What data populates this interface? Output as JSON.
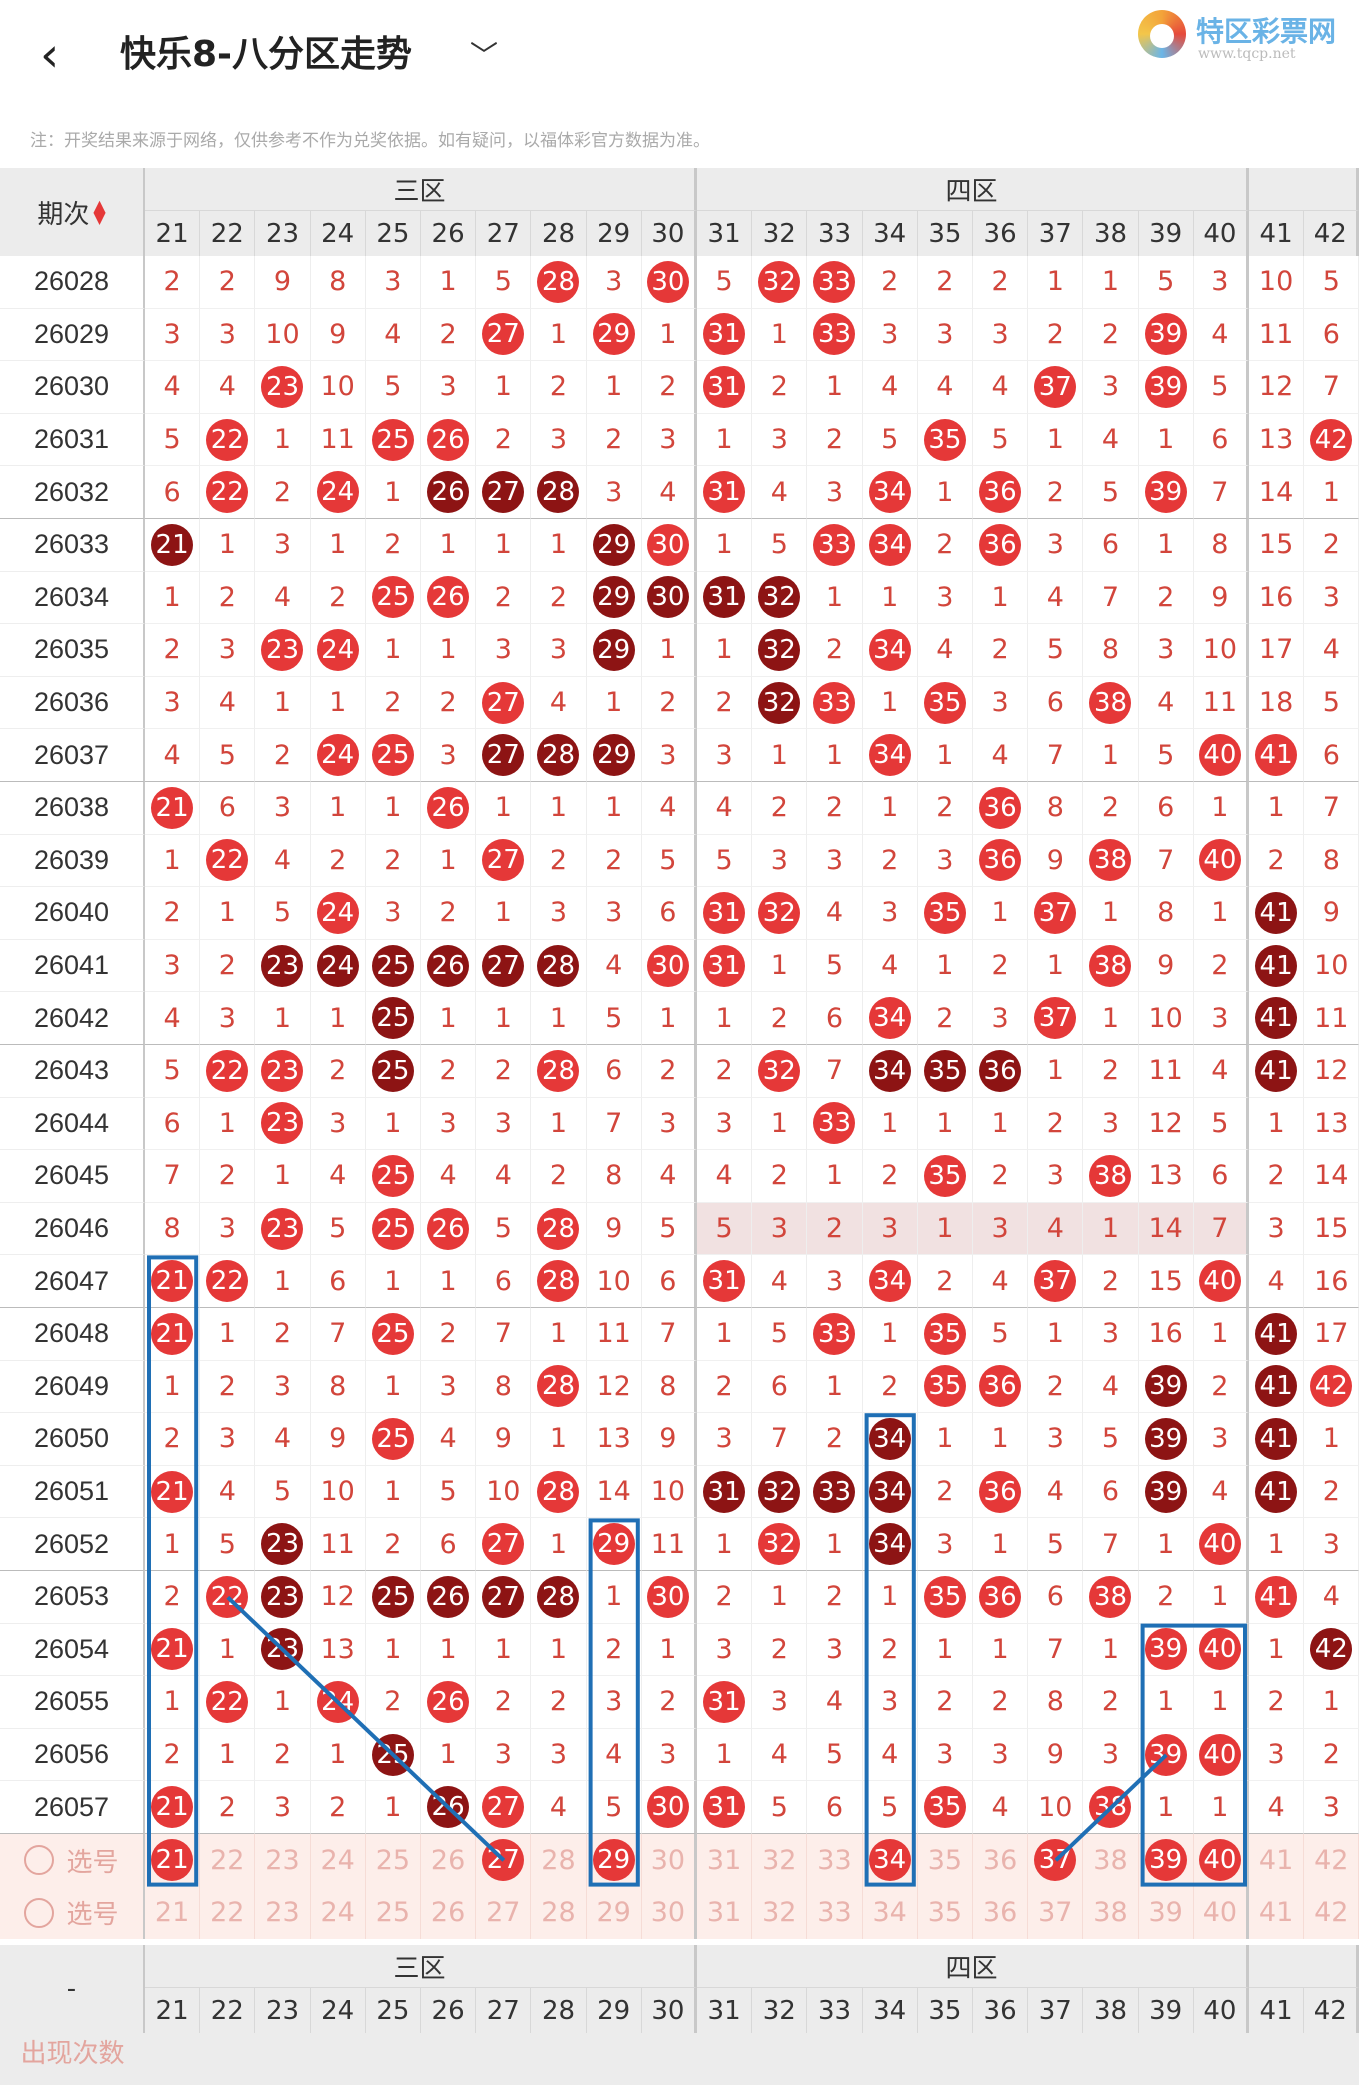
{
  "header": {
    "back_icon": "chevron-left-icon",
    "title": "快乐8-八分区走势",
    "dropdown_icon": "chevron-down-icon",
    "logo_text": "特区彩票网",
    "logo_url": "www.tqcp.net"
  },
  "note": "注：开奖结果来源于网络，仅供参考不作为兑奖依据。如有疑问，以福体彩官方数据为准。",
  "table": {
    "period_header": "期次",
    "sort_icon": "sort-arrows-icon",
    "zones": [
      {
        "name": "三区",
        "numbers": [
          "21",
          "22",
          "23",
          "24",
          "25",
          "26",
          "27",
          "28",
          "29",
          "30"
        ]
      },
      {
        "name": "四区",
        "numbers": [
          "31",
          "32",
          "33",
          "34",
          "35",
          "36",
          "37",
          "38",
          "39",
          "40"
        ]
      },
      {
        "name": "",
        "numbers": [
          "41",
          "42"
        ]
      }
    ],
    "rows": [
      {
        "p": "26028",
        "c": [
          "2",
          "2",
          "9",
          "8",
          "3",
          "1",
          "5",
          "@28",
          "3",
          "@30",
          "5",
          "@32",
          "@33",
          "2",
          "2",
          "2",
          "1",
          "1",
          "5",
          "3",
          "10",
          "5"
        ]
      },
      {
        "p": "26029",
        "c": [
          "3",
          "3",
          "10",
          "9",
          "4",
          "2",
          "@27",
          "1",
          "@29",
          "1",
          "@31",
          "1",
          "@33",
          "3",
          "3",
          "3",
          "2",
          "2",
          "@39",
          "4",
          "11",
          "6"
        ]
      },
      {
        "p": "26030",
        "c": [
          "4",
          "4",
          "@23",
          "10",
          "5",
          "3",
          "1",
          "2",
          "1",
          "2",
          "@31",
          "2",
          "1",
          "4",
          "4",
          "4",
          "@37",
          "3",
          "@39",
          "5",
          "12",
          "7"
        ]
      },
      {
        "p": "26031",
        "c": [
          "5",
          "@22",
          "1",
          "11",
          "@25",
          "@26",
          "2",
          "3",
          "2",
          "3",
          "1",
          "3",
          "2",
          "5",
          "@35",
          "5",
          "1",
          "4",
          "1",
          "6",
          "13",
          "@42"
        ]
      },
      {
        "p": "26032",
        "c": [
          "6",
          "@22",
          "2",
          "@24",
          "1",
          "#26",
          "#27",
          "#28",
          "3",
          "4",
          "@31",
          "4",
          "3",
          "@34",
          "1",
          "@36",
          "2",
          "5",
          "@39",
          "7",
          "14",
          "1"
        ]
      },
      {
        "p": "26033",
        "c": [
          "#21",
          "1",
          "3",
          "1",
          "2",
          "1",
          "1",
          "1",
          "#29",
          "@30",
          "1",
          "5",
          "@33",
          "@34",
          "2",
          "@36",
          "3",
          "6",
          "1",
          "8",
          "15",
          "2"
        ]
      },
      {
        "p": "26034",
        "c": [
          "1",
          "2",
          "4",
          "2",
          "@25",
          "@26",
          "2",
          "2",
          "#29",
          "#30",
          "#31",
          "#32",
          "1",
          "1",
          "3",
          "1",
          "4",
          "7",
          "2",
          "9",
          "16",
          "3"
        ]
      },
      {
        "p": "26035",
        "c": [
          "2",
          "3",
          "@23",
          "@24",
          "1",
          "1",
          "3",
          "3",
          "#29",
          "1",
          "1",
          "#32",
          "2",
          "@34",
          "4",
          "2",
          "5",
          "8",
          "3",
          "10",
          "17",
          "4"
        ]
      },
      {
        "p": "26036",
        "c": [
          "3",
          "4",
          "1",
          "1",
          "2",
          "2",
          "@27",
          "4",
          "1",
          "2",
          "2",
          "#32",
          "@33",
          "1",
          "@35",
          "3",
          "6",
          "@38",
          "4",
          "11",
          "18",
          "5"
        ]
      },
      {
        "p": "26037",
        "c": [
          "4",
          "5",
          "2",
          "@24",
          "@25",
          "3",
          "#27",
          "#28",
          "#29",
          "3",
          "3",
          "1",
          "1",
          "@34",
          "1",
          "4",
          "7",
          "1",
          "5",
          "@40",
          "@41",
          "6"
        ]
      },
      {
        "p": "26038",
        "c": [
          "@21",
          "6",
          "3",
          "1",
          "1",
          "@26",
          "1",
          "1",
          "1",
          "4",
          "4",
          "2",
          "2",
          "1",
          "2",
          "@36",
          "8",
          "2",
          "6",
          "1",
          "1",
          "7"
        ]
      },
      {
        "p": "26039",
        "c": [
          "1",
          "@22",
          "4",
          "2",
          "2",
          "1",
          "@27",
          "2",
          "2",
          "5",
          "5",
          "3",
          "3",
          "2",
          "3",
          "@36",
          "9",
          "@38",
          "7",
          "@40",
          "2",
          "8"
        ]
      },
      {
        "p": "26040",
        "c": [
          "2",
          "1",
          "5",
          "@24",
          "3",
          "2",
          "1",
          "3",
          "3",
          "6",
          "@31",
          "@32",
          "4",
          "3",
          "@35",
          "1",
          "@37",
          "1",
          "8",
          "1",
          "#41",
          "9"
        ]
      },
      {
        "p": "26041",
        "c": [
          "3",
          "2",
          "#23",
          "#24",
          "#25",
          "#26",
          "#27",
          "#28",
          "4",
          "@30",
          "@31",
          "1",
          "5",
          "4",
          "1",
          "2",
          "1",
          "@38",
          "9",
          "2",
          "#41",
          "10"
        ]
      },
      {
        "p": "26042",
        "c": [
          "4",
          "3",
          "1",
          "1",
          "#25",
          "1",
          "1",
          "1",
          "5",
          "1",
          "1",
          "2",
          "6",
          "@34",
          "2",
          "3",
          "@37",
          "1",
          "10",
          "3",
          "#41",
          "11"
        ]
      },
      {
        "p": "26043",
        "c": [
          "5",
          "@22",
          "@23",
          "2",
          "#25",
          "2",
          "2",
          "@28",
          "6",
          "2",
          "2",
          "@32",
          "7",
          "#34",
          "#35",
          "#36",
          "1",
          "2",
          "11",
          "4",
          "#41",
          "12"
        ]
      },
      {
        "p": "26044",
        "c": [
          "6",
          "1",
          "@23",
          "3",
          "1",
          "3",
          "3",
          "1",
          "7",
          "3",
          "3",
          "1",
          "@33",
          "1",
          "1",
          "1",
          "2",
          "3",
          "12",
          "5",
          "1",
          "13"
        ]
      },
      {
        "p": "26045",
        "c": [
          "7",
          "2",
          "1",
          "4",
          "@25",
          "4",
          "4",
          "2",
          "8",
          "4",
          "4",
          "2",
          "1",
          "2",
          "@35",
          "2",
          "3",
          "@38",
          "13",
          "6",
          "2",
          "14"
        ]
      },
      {
        "p": "26046",
        "c": [
          "8",
          "3",
          "@23",
          "5",
          "@25",
          "@26",
          "5",
          "@28",
          "9",
          "5",
          "5",
          "3",
          "2",
          "3",
          "1",
          "3",
          "4",
          "1",
          "14",
          "7",
          "3",
          "15"
        ]
      },
      {
        "p": "26047",
        "c": [
          "@21",
          "@22",
          "1",
          "6",
          "1",
          "1",
          "6",
          "@28",
          "10",
          "6",
          "@31",
          "4",
          "3",
          "@34",
          "2",
          "4",
          "@37",
          "2",
          "15",
          "@40",
          "4",
          "16"
        ]
      },
      {
        "p": "26048",
        "c": [
          "@21",
          "1",
          "2",
          "7",
          "@25",
          "2",
          "7",
          "1",
          "11",
          "7",
          "1",
          "5",
          "@33",
          "1",
          "@35",
          "5",
          "1",
          "3",
          "16",
          "1",
          "#41",
          "17"
        ]
      },
      {
        "p": "26049",
        "c": [
          "1",
          "2",
          "3",
          "8",
          "1",
          "3",
          "8",
          "@28",
          "12",
          "8",
          "2",
          "6",
          "1",
          "2",
          "@35",
          "@36",
          "2",
          "4",
          "#39",
          "2",
          "#41",
          "@42"
        ]
      },
      {
        "p": "26050",
        "c": [
          "2",
          "3",
          "4",
          "9",
          "@25",
          "4",
          "9",
          "1",
          "13",
          "9",
          "3",
          "7",
          "2",
          "#34",
          "1",
          "1",
          "3",
          "5",
          "#39",
          "3",
          "#41",
          "1"
        ]
      },
      {
        "p": "26051",
        "c": [
          "@21",
          "4",
          "5",
          "10",
          "1",
          "5",
          "10",
          "@28",
          "14",
          "10",
          "#31",
          "#32",
          "#33",
          "#34",
          "2",
          "@36",
          "4",
          "6",
          "#39",
          "4",
          "#41",
          "2"
        ]
      },
      {
        "p": "26052",
        "c": [
          "1",
          "5",
          "#23",
          "11",
          "2",
          "6",
          "@27",
          "1",
          "@29",
          "11",
          "1",
          "@32",
          "1",
          "#34",
          "3",
          "1",
          "5",
          "7",
          "1",
          "@40",
          "1",
          "3"
        ]
      },
      {
        "p": "26053",
        "c": [
          "2",
          "@22",
          "#23",
          "12",
          "#25",
          "#26",
          "#27",
          "#28",
          "1",
          "@30",
          "2",
          "1",
          "2",
          "1",
          "@35",
          "@36",
          "6",
          "@38",
          "2",
          "1",
          "@41",
          "4"
        ]
      },
      {
        "p": "26054",
        "c": [
          "@21",
          "1",
          "#23",
          "13",
          "1",
          "1",
          "1",
          "1",
          "2",
          "1",
          "3",
          "2",
          "3",
          "2",
          "1",
          "1",
          "7",
          "1",
          "@39",
          "@40",
          "1",
          "#42"
        ]
      },
      {
        "p": "26055",
        "c": [
          "1",
          "@22",
          "1",
          "@24",
          "2",
          "@26",
          "2",
          "2",
          "3",
          "2",
          "@31",
          "3",
          "4",
          "3",
          "2",
          "2",
          "8",
          "2",
          "1",
          "1",
          "2",
          "1"
        ]
      },
      {
        "p": "26056",
        "c": [
          "2",
          "1",
          "2",
          "1",
          "#25",
          "1",
          "3",
          "3",
          "4",
          "3",
          "1",
          "4",
          "5",
          "4",
          "3",
          "3",
          "9",
          "3",
          "@39",
          "@40",
          "3",
          "2"
        ]
      },
      {
        "p": "26057",
        "c": [
          "@21",
          "2",
          "3",
          "2",
          "1",
          "#26",
          "@27",
          "4",
          "5",
          "@30",
          "@31",
          "5",
          "6",
          "5",
          "@35",
          "4",
          "10",
          "@38",
          "1",
          "1",
          "4",
          "3"
        ]
      }
    ],
    "select_rows": [
      {
        "label": "选号",
        "balls": [
          "21",
          "27",
          "29",
          "34",
          "37",
          "39",
          "40"
        ]
      },
      {
        "label": "选号",
        "balls": []
      }
    ],
    "footer_label": "-",
    "footer_partial_label": "出现次数"
  },
  "colors": {
    "ball_light": "#e53838",
    "ball_mid": "#b52424",
    "ball_dark": "#8d1414",
    "number": "#d2453b",
    "highlight_box": "#1f6fb5"
  }
}
